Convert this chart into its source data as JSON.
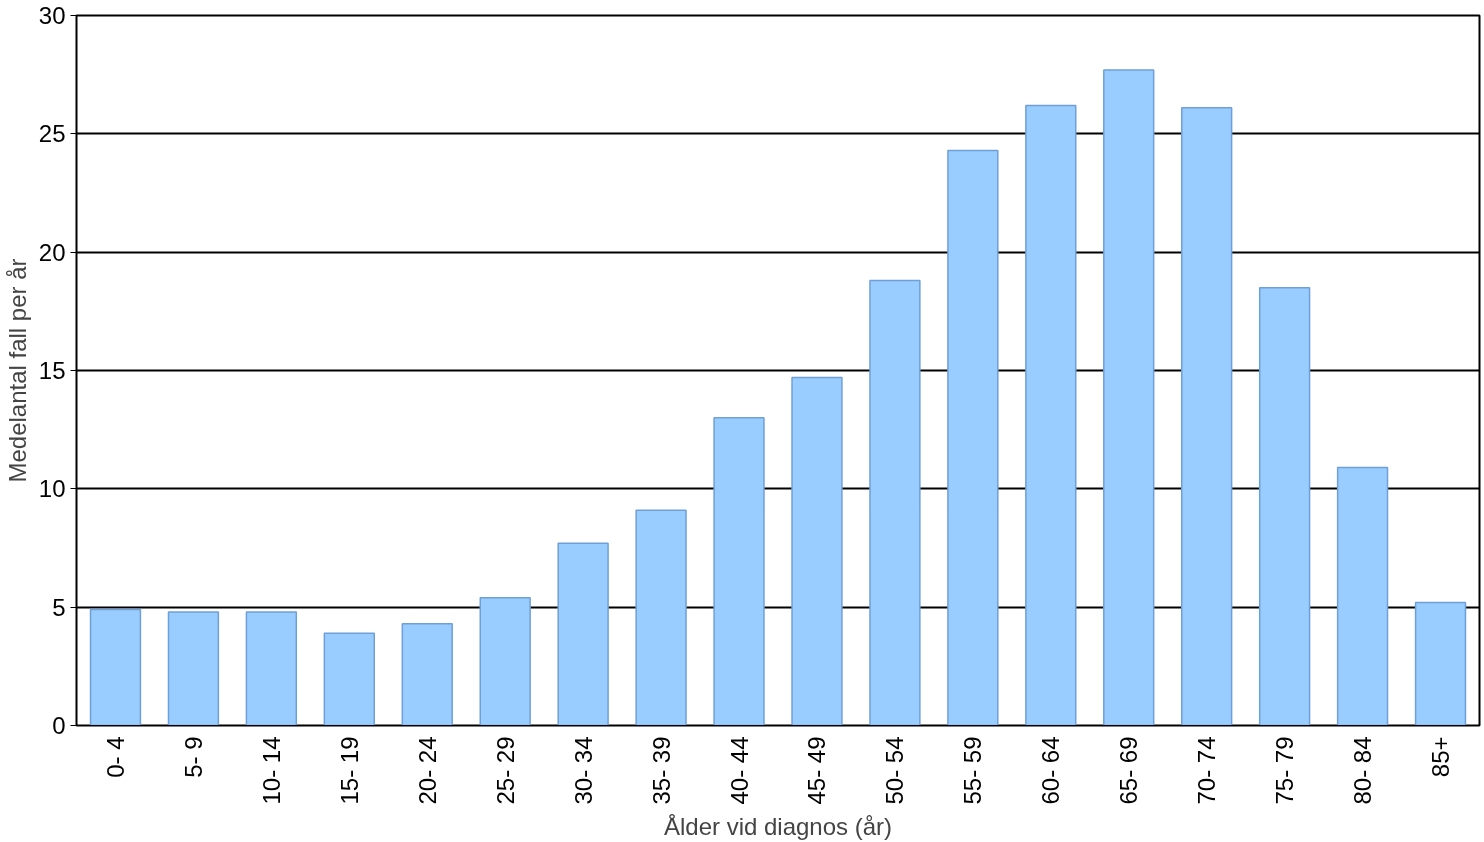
{
  "chart_data": {
    "type": "bar",
    "xlabel": "Ålder vid diagnos (år)",
    "ylabel": "Medelantal fall per år",
    "categories": [
      "0- 4",
      "5- 9",
      "10- 14",
      "15- 19",
      "20- 24",
      "25- 29",
      "30- 34",
      "35- 39",
      "40- 44",
      "45- 49",
      "50- 54",
      "55- 59",
      "60- 64",
      "65- 69",
      "70- 74",
      "75- 79",
      "80- 84",
      "85+"
    ],
    "values": [
      4.9,
      4.8,
      4.8,
      3.9,
      4.3,
      5.4,
      7.7,
      9.1,
      13.0,
      14.7,
      18.8,
      24.3,
      26.2,
      27.7,
      26.1,
      18.5,
      10.9,
      5.2
    ],
    "color": "#99ccff",
    "ylim": [
      0,
      30
    ],
    "yticks": [
      0,
      5,
      10,
      15,
      20,
      25,
      30
    ],
    "grid": "y"
  }
}
